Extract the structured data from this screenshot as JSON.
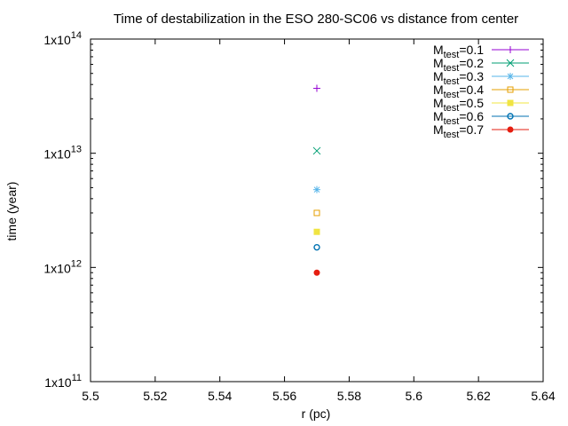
{
  "chart_data": {
    "type": "scatter",
    "title": "Time of destabilization in the ESO 280-SC06 vs distance from center",
    "xlabel": "r (pc)",
    "ylabel": "time (year)",
    "xlim": [
      5.5,
      5.64
    ],
    "ylim": [
      100000000000.0,
      100000000000000.0
    ],
    "yscale": "log",
    "xticks": [
      5.5,
      5.52,
      5.54,
      5.56,
      5.58,
      5.6,
      5.62,
      5.64
    ],
    "xtick_labels": [
      "5.5",
      "5.52",
      "5.54",
      "5.56",
      "5.58",
      "5.6",
      "5.62",
      "5.64"
    ],
    "yticks": [
      {
        "value": 100000000000.0,
        "base": "1x10",
        "exp": "11"
      },
      {
        "value": 1000000000000.0,
        "base": "1x10",
        "exp": "12"
      },
      {
        "value": 10000000000000.0,
        "base": "1x10",
        "exp": "13"
      },
      {
        "value": 100000000000000.0,
        "base": "1x10",
        "exp": "14"
      }
    ],
    "legend_position": "top-right",
    "series": [
      {
        "name_main": "M",
        "name_sub": "test",
        "name_rest": "=0.1",
        "color": "#9400d3",
        "marker": "plus",
        "points": [
          {
            "x": 5.57,
            "y": 37000000000000.0
          }
        ]
      },
      {
        "name_main": "M",
        "name_sub": "test",
        "name_rest": "=0.2",
        "color": "#009e73",
        "marker": "cross",
        "points": [
          {
            "x": 5.57,
            "y": 10500000000000.0
          }
        ]
      },
      {
        "name_main": "M",
        "name_sub": "test",
        "name_rest": "=0.3",
        "color": "#56b4e9",
        "marker": "star",
        "points": [
          {
            "x": 5.57,
            "y": 4800000000000.0
          }
        ]
      },
      {
        "name_main": "M",
        "name_sub": "test",
        "name_rest": "=0.4",
        "color": "#e69f00",
        "marker": "open-square",
        "points": [
          {
            "x": 5.57,
            "y": 3000000000000.0
          }
        ]
      },
      {
        "name_main": "M",
        "name_sub": "test",
        "name_rest": "=0.5",
        "color": "#f0e442",
        "marker": "filled-square",
        "points": [
          {
            "x": 5.57,
            "y": 2050000000000.0
          }
        ]
      },
      {
        "name_main": "M",
        "name_sub": "test",
        "name_rest": "=0.6",
        "color": "#0072b2",
        "marker": "open-circle",
        "points": [
          {
            "x": 5.57,
            "y": 1500000000000.0
          }
        ]
      },
      {
        "name_main": "M",
        "name_sub": "test",
        "name_rest": "=0.7",
        "color": "#e51e10",
        "marker": "filled-circle",
        "points": [
          {
            "x": 5.57,
            "y": 900000000000.0
          }
        ]
      }
    ]
  }
}
